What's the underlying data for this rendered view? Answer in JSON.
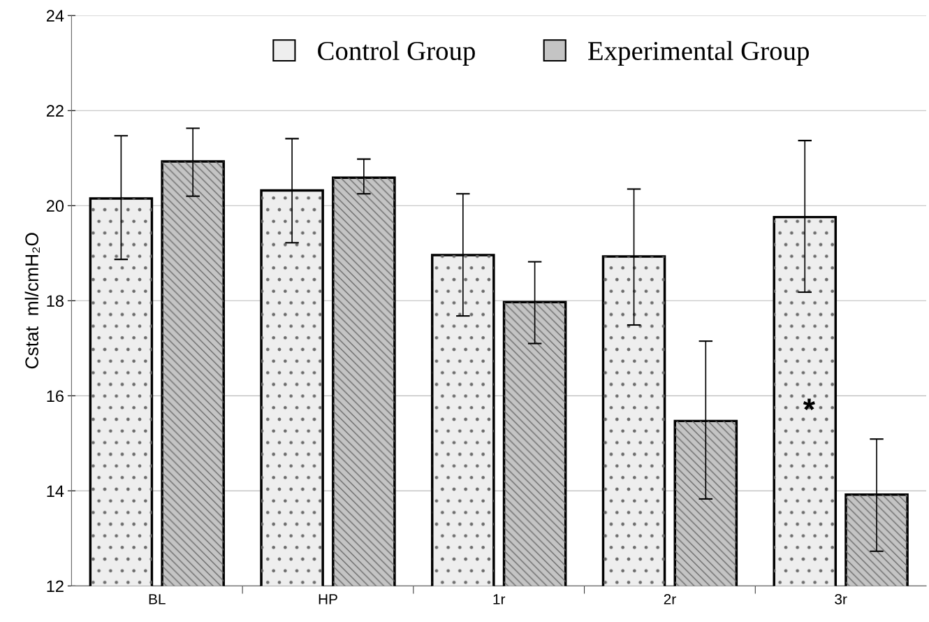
{
  "chart_data": {
    "type": "bar",
    "ylabel": "Cstat  ml/cmH₂O",
    "categories": [
      "BL",
      "HP",
      "1r",
      "2r",
      "3r"
    ],
    "series": [
      {
        "name": "Control Group",
        "color": "#eeeeee",
        "values": [
          20.15,
          20.32,
          18.96,
          18.93,
          19.76
        ],
        "errors": [
          [
            18.87,
            21.47
          ],
          [
            19.22,
            21.41
          ],
          [
            17.68,
            20.25
          ],
          [
            17.49,
            20.35
          ],
          [
            18.18,
            21.37
          ]
        ]
      },
      {
        "name": "Experimental Group",
        "color": "#c4c4c4",
        "values": [
          20.93,
          20.59,
          17.97,
          15.47,
          13.92
        ],
        "errors": [
          [
            20.2,
            21.63
          ],
          [
            20.25,
            20.98
          ],
          [
            17.1,
            18.82
          ],
          [
            13.83,
            17.15
          ],
          [
            12.73,
            15.09
          ]
        ]
      }
    ],
    "ylim": [
      12,
      24
    ],
    "yticks": [
      12,
      14,
      16,
      18,
      20,
      22,
      24
    ],
    "grid": "y",
    "legend": "top",
    "annotations": [
      "*"
    ]
  }
}
